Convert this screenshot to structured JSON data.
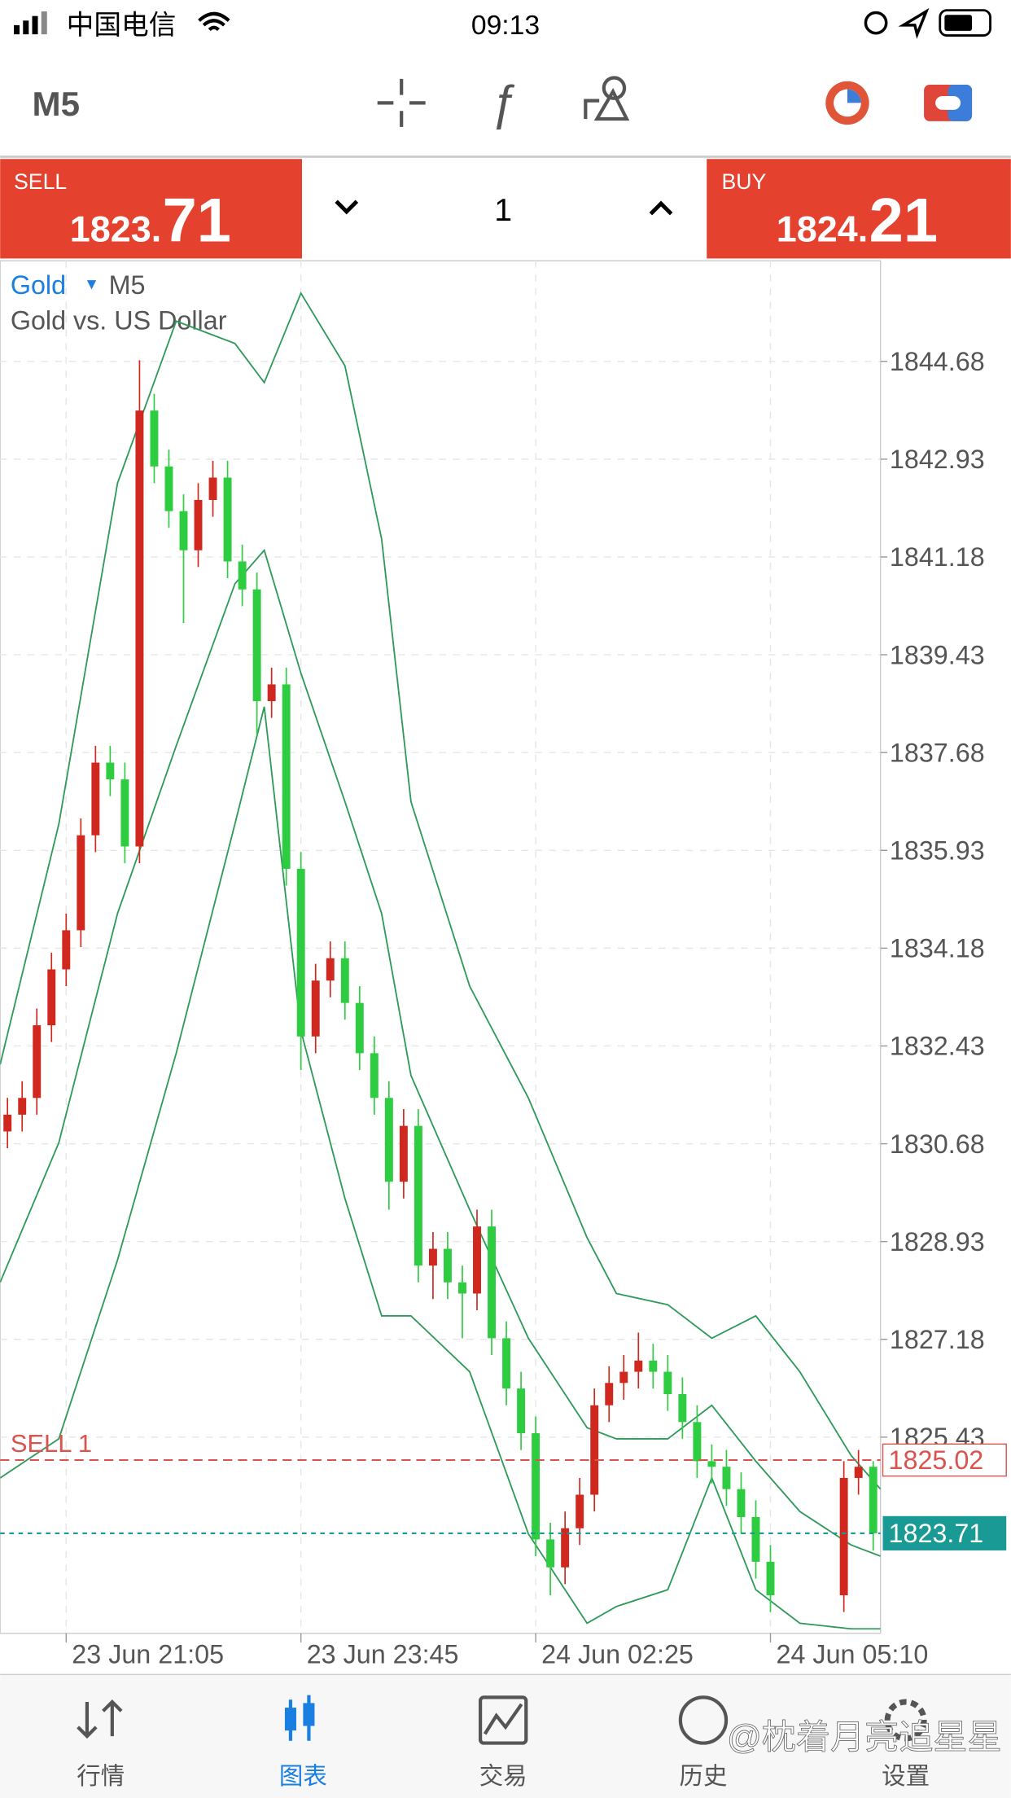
{
  "status_bar": {
    "carrier": "中国电信",
    "time": "09:13"
  },
  "toolbar": {
    "timeframe": "M5"
  },
  "trade_panel": {
    "sell_label": "SELL",
    "sell_price_main": "1823.",
    "sell_price_big": "71",
    "volume": "1",
    "buy_label": "BUY",
    "buy_price_main": "1824.",
    "buy_price_big": "21"
  },
  "chart_data": {
    "type": "candlestick",
    "symbol": "Gold",
    "timeframe": "M5",
    "description": "Gold vs. US Dollar",
    "x": [
      1,
      3,
      5,
      7,
      9,
      11,
      13,
      15,
      17,
      19,
      21,
      23,
      25,
      27,
      29,
      31,
      33,
      35,
      37,
      39,
      41,
      43,
      45,
      47,
      49,
      51,
      53,
      55,
      57,
      59,
      61,
      63,
      65,
      67,
      69,
      71,
      73,
      75,
      77,
      79,
      81,
      83,
      85,
      87,
      89,
      91,
      93,
      95,
      97,
      99,
      101,
      103,
      105,
      107,
      109,
      111,
      113,
      115,
      117,
      119
    ],
    "open": [
      1830.9,
      1831.2,
      1831.5,
      1832.8,
      1833.8,
      1834.5,
      1836.2,
      1837.5,
      1837.2,
      1836.0,
      1843.8,
      1842.8,
      1842.0,
      1841.3,
      1842.2,
      1842.6,
      1841.1,
      1840.6,
      1838.6,
      1838.9,
      1835.6,
      1832.6,
      1833.6,
      1834.0,
      1833.2,
      1832.3,
      1831.5,
      1830.0,
      1831.0,
      1828.5,
      1828.8,
      1828.2,
      1828.0,
      1829.2,
      1827.2,
      1826.3,
      1825.5,
      1823.6,
      1823.1,
      1823.8,
      1824.4,
      1826.0,
      1826.4,
      1826.6,
      1826.8,
      1826.6,
      1826.2,
      1825.7,
      1825.0,
      1824.9,
      1824.5,
      1824.0,
      1823.2,
      null,
      null,
      null,
      null,
      1822.6,
      1824.7,
      1824.9
    ],
    "high": [
      1831.5,
      1831.8,
      1833.1,
      1834.1,
      1834.8,
      1836.5,
      1837.8,
      1837.8,
      1837.5,
      1844.7,
      1844.1,
      1843.1,
      1842.3,
      1842.5,
      1842.9,
      1842.9,
      1841.4,
      1840.9,
      1839.2,
      1839.2,
      1835.9,
      1833.9,
      1834.3,
      1834.3,
      1833.5,
      1832.6,
      1831.8,
      1831.3,
      1831.3,
      1829.1,
      1829.1,
      1828.5,
      1829.5,
      1829.5,
      1827.5,
      1826.6,
      1825.8,
      1823.9,
      1824.1,
      1824.7,
      1826.3,
      1826.7,
      1826.9,
      1827.3,
      1827.1,
      1826.9,
      1826.5,
      1826.0,
      1825.3,
      1825.2,
      1824.8,
      1824.3,
      1823.5,
      null,
      null,
      null,
      null,
      1825.0,
      1825.2,
      1825.0
    ],
    "low": [
      1830.6,
      1830.9,
      1831.2,
      1832.5,
      1833.5,
      1834.2,
      1835.9,
      1836.9,
      1835.7,
      1835.7,
      1842.5,
      1841.7,
      1840.0,
      1841.0,
      1841.9,
      1840.8,
      1840.3,
      1838.0,
      1838.3,
      1835.3,
      1832.0,
      1832.3,
      1833.3,
      1832.9,
      1832.0,
      1831.2,
      1829.5,
      1829.7,
      1828.2,
      1827.9,
      1827.9,
      1827.2,
      1827.7,
      1826.9,
      1826.0,
      1825.2,
      1823.3,
      1822.6,
      1822.8,
      1823.5,
      1824.1,
      1825.7,
      1826.1,
      1826.3,
      1826.3,
      1825.9,
      1825.4,
      1824.7,
      1824.6,
      1824.2,
      1823.7,
      1822.9,
      1822.3,
      null,
      null,
      null,
      null,
      1822.3,
      1824.4,
      1823.4
    ],
    "close": [
      1831.2,
      1831.5,
      1832.8,
      1833.8,
      1834.5,
      1836.2,
      1837.5,
      1837.2,
      1836.0,
      1843.8,
      1842.8,
      1842.0,
      1841.3,
      1842.2,
      1842.6,
      1841.1,
      1840.6,
      1838.6,
      1838.9,
      1835.6,
      1832.6,
      1833.6,
      1834.0,
      1833.2,
      1832.3,
      1831.5,
      1830.0,
      1831.0,
      1828.5,
      1828.8,
      1828.2,
      1828.0,
      1829.2,
      1827.2,
      1826.3,
      1825.5,
      1823.6,
      1823.1,
      1823.8,
      1824.4,
      1826.0,
      1826.4,
      1826.6,
      1826.8,
      1826.6,
      1826.2,
      1825.7,
      1825.0,
      1824.9,
      1824.5,
      1824.0,
      1823.2,
      1822.6,
      null,
      null,
      null,
      null,
      1824.7,
      1824.9,
      1823.71
    ],
    "up_color": "#d0281e",
    "down_color": "#2ecc40",
    "bands": {
      "color": "#2e9a5a",
      "x": [
        0,
        8,
        16,
        24,
        32,
        36,
        41,
        47,
        52,
        56,
        64,
        72,
        80,
        84,
        91,
        97,
        103,
        109,
        116,
        120
      ],
      "upper": [
        1832.1,
        1836.4,
        1842.5,
        1845.4,
        1845,
        1844.3,
        1845.9,
        1844.6,
        1841.5,
        1836.8,
        1833.5,
        1831.5,
        1829,
        1828,
        1827.8,
        1827.2,
        1827.6,
        1826.6,
        1825.1,
        1824.5
      ],
      "middle": [
        1828.2,
        1830.7,
        1834.8,
        1837.8,
        1840.7,
        1841.3,
        1839.1,
        1836.8,
        1834.8,
        1831.9,
        1829.5,
        1827.2,
        1825.6,
        1825.4,
        1825.4,
        1826,
        1825,
        1824.1,
        1823.5,
        1823.3
      ],
      "lower": [
        1824.7,
        1825.4,
        1828.6,
        1832.3,
        1836.4,
        1838.5,
        1832.7,
        1829.7,
        1827.6,
        1827.6,
        1826.6,
        1823.7,
        1822.1,
        1822.4,
        1822.7,
        1824.7,
        1822.7,
        1822.1,
        1822.0,
        1822.0
      ]
    },
    "xlim": [
      0,
      120
    ],
    "xticks": [
      {
        "value": 9,
        "label": "23 Jun 21:05"
      },
      {
        "value": 41,
        "label": "23 Jun 23:45"
      },
      {
        "value": 73,
        "label": "24 Jun 02:25"
      },
      {
        "value": 105,
        "label": "24 Jun 05:10"
      }
    ],
    "ylim": [
      1821.92,
      1846.48
    ],
    "yticks": [
      1844.68,
      1842.93,
      1841.18,
      1839.43,
      1837.68,
      1835.93,
      1834.18,
      1832.43,
      1830.68,
      1828.93,
      1827.18,
      1825.43
    ],
    "grid": true,
    "order_line": {
      "label": "SELL 1",
      "value": 1825.02,
      "color": "#d9534f"
    },
    "price_line": {
      "value": 1823.71,
      "color": "#1a9a95"
    }
  },
  "tab_bar": {
    "tabs": [
      "行情",
      "图表",
      "交易",
      "历史",
      "设置"
    ],
    "active": 1
  },
  "watermark": "@枕着月亮追星星"
}
